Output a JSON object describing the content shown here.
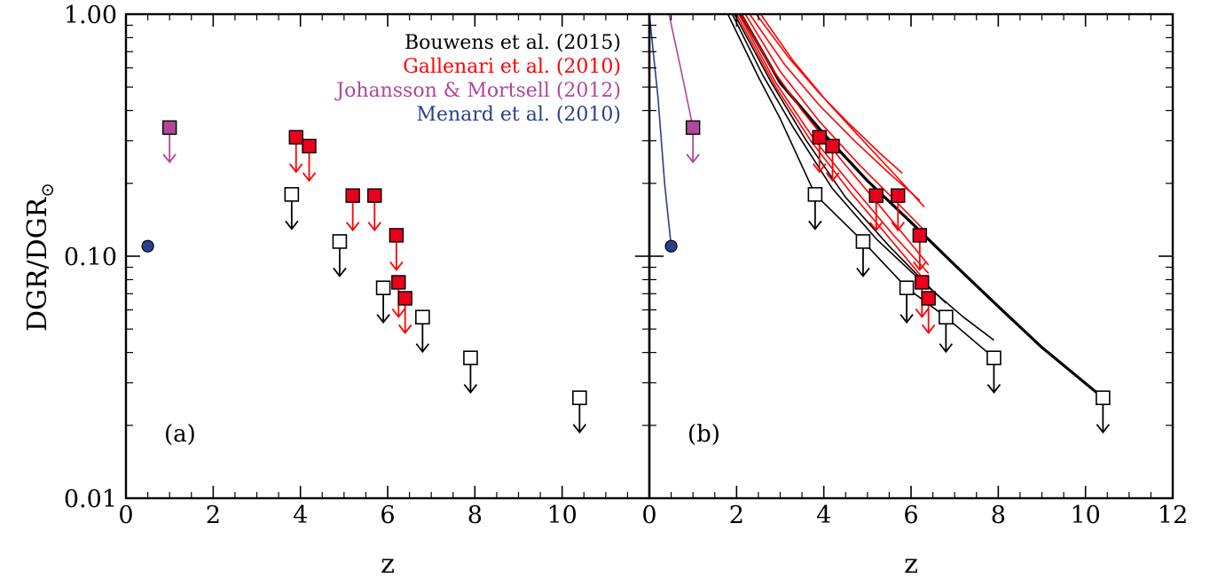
{
  "chart_data": {
    "type": "scatter",
    "ylabel_main": "DGR/DGR",
    "ylabel_sub": "⊙",
    "xlabel": "z",
    "yscale": "log",
    "ylim": [
      0.01,
      1.0
    ],
    "grid": false,
    "legend_placement": "top-right of panel (a)",
    "y_tick_labels": [
      "1.00",
      "0.10",
      "0.01"
    ],
    "y_tick_values": [
      1.0,
      0.1,
      0.01
    ],
    "colors": {
      "bouwens": "#000000",
      "gallenari": "#ff0000",
      "johansson": "#b0479a",
      "menard": "#2a3f8f",
      "gallenari_fill": "#e8001c"
    },
    "legend": [
      {
        "key": "bouwens",
        "label": "Bouwens et al. (2015)"
      },
      {
        "key": "gallenari",
        "label": "Gallenari et al. (2010)"
      },
      {
        "key": "johansson",
        "label": "Johansson & Mortsell (2012)"
      },
      {
        "key": "menard",
        "label": "Menard et al. (2010)"
      }
    ],
    "panels": [
      {
        "label": "(a)",
        "xlim": [
          0,
          12
        ],
        "x_tick_labels": [
          "0",
          "2",
          "4",
          "6",
          "8",
          "10"
        ],
        "x_tick_values": [
          0,
          2,
          4,
          6,
          8,
          10
        ],
        "show_curves": false
      },
      {
        "label": "(b)",
        "xlim": [
          0,
          12
        ],
        "x_tick_labels": [
          "0",
          "2",
          "4",
          "6",
          "8",
          "10",
          "12"
        ],
        "x_tick_values": [
          0,
          2,
          4,
          6,
          8,
          10,
          12
        ],
        "show_curves": true
      }
    ],
    "series": [
      {
        "name": "Bouwens et al. (2015)",
        "key": "bouwens",
        "marker": "open-square",
        "upper_limit": true,
        "points": [
          {
            "x": 3.8,
            "y": 0.18
          },
          {
            "x": 4.9,
            "y": 0.115
          },
          {
            "x": 5.9,
            "y": 0.074
          },
          {
            "x": 6.8,
            "y": 0.056
          },
          {
            "x": 7.9,
            "y": 0.038
          },
          {
            "x": 10.4,
            "y": 0.026
          }
        ]
      },
      {
        "name": "Gallenari et al. (2010)",
        "key": "gallenari",
        "marker": "filled-square",
        "upper_limit": true,
        "points": [
          {
            "x": 3.9,
            "y": 0.31
          },
          {
            "x": 4.2,
            "y": 0.285
          },
          {
            "x": 5.2,
            "y": 0.178
          },
          {
            "x": 5.7,
            "y": 0.178
          },
          {
            "x": 6.2,
            "y": 0.122
          },
          {
            "x": 6.25,
            "y": 0.078
          },
          {
            "x": 6.4,
            "y": 0.067
          }
        ]
      },
      {
        "name": "Johansson & Mortsell (2012)",
        "key": "johansson",
        "marker": "filled-square",
        "upper_limit": true,
        "points": [
          {
            "x": 1.0,
            "y": 0.34
          }
        ]
      },
      {
        "name": "Menard et al. (2010)",
        "key": "menard",
        "marker": "filled-circle",
        "upper_limit": false,
        "points": [
          {
            "x": 0.5,
            "y": 0.11
          }
        ]
      }
    ],
    "model_curves": [
      {
        "key": "bouwens",
        "width": 3.2,
        "points": [
          [
            2.1,
            1.0
          ],
          [
            3.0,
            0.52
          ],
          [
            4.0,
            0.32
          ],
          [
            5.0,
            0.205
          ],
          [
            6.0,
            0.138
          ],
          [
            7.0,
            0.092
          ],
          [
            8.0,
            0.062
          ],
          [
            9.0,
            0.042
          ],
          [
            10.4,
            0.026
          ]
        ]
      },
      {
        "key": "bouwens",
        "width": 1.6,
        "points": [
          [
            1.8,
            1.0
          ],
          [
            2.5,
            0.55
          ],
          [
            3.0,
            0.37
          ],
          [
            3.8,
            0.18
          ],
          [
            4.9,
            0.115
          ],
          [
            5.9,
            0.074
          ],
          [
            6.8,
            0.056
          ],
          [
            7.9,
            0.038
          ]
        ]
      },
      {
        "key": "bouwens",
        "width": 1.6,
        "points": [
          [
            1.9,
            1.0
          ],
          [
            2.6,
            0.56
          ],
          [
            3.3,
            0.34
          ],
          [
            4.2,
            0.19
          ],
          [
            5.2,
            0.118
          ],
          [
            6.2,
            0.08
          ],
          [
            7.2,
            0.056
          ],
          [
            7.9,
            0.045
          ]
        ]
      },
      {
        "key": "bouwens",
        "width": 1.6,
        "points": [
          [
            1.95,
            1.0
          ],
          [
            2.8,
            0.52
          ],
          [
            3.6,
            0.3
          ],
          [
            4.5,
            0.175
          ],
          [
            5.5,
            0.11
          ],
          [
            6.5,
            0.072
          ],
          [
            6.8,
            0.064
          ]
        ]
      },
      {
        "key": "gallenari",
        "width": 1.6,
        "points": [
          [
            2.1,
            1.0
          ],
          [
            2.8,
            0.6
          ],
          [
            3.5,
            0.4
          ],
          [
            4.4,
            0.25
          ],
          [
            5.3,
            0.16
          ],
          [
            6.4,
            0.092
          ]
        ]
      },
      {
        "key": "gallenari",
        "width": 1.6,
        "points": [
          [
            2.2,
            1.0
          ],
          [
            3.0,
            0.58
          ],
          [
            3.9,
            0.36
          ],
          [
            4.8,
            0.24
          ],
          [
            5.7,
            0.165
          ],
          [
            6.3,
            0.128
          ]
        ]
      },
      {
        "key": "gallenari",
        "width": 1.6,
        "points": [
          [
            2.3,
            1.0
          ],
          [
            3.1,
            0.62
          ],
          [
            3.9,
            0.42
          ],
          [
            4.7,
            0.3
          ],
          [
            5.5,
            0.22
          ],
          [
            6.2,
            0.17
          ]
        ]
      },
      {
        "key": "gallenari",
        "width": 1.6,
        "points": [
          [
            2.45,
            1.0
          ],
          [
            3.2,
            0.66
          ],
          [
            3.9,
            0.47
          ],
          [
            4.6,
            0.35
          ],
          [
            5.3,
            0.265
          ],
          [
            5.8,
            0.22
          ]
        ]
      },
      {
        "key": "gallenari",
        "width": 1.6,
        "points": [
          [
            2.55,
            1.0
          ],
          [
            3.3,
            0.64
          ],
          [
            4.1,
            0.43
          ],
          [
            4.9,
            0.3
          ],
          [
            5.6,
            0.22
          ],
          [
            6.3,
            0.16
          ]
        ]
      },
      {
        "key": "gallenari",
        "width": 1.6,
        "points": [
          [
            2.05,
            1.0
          ],
          [
            2.9,
            0.52
          ],
          [
            3.8,
            0.3
          ],
          [
            4.7,
            0.19
          ],
          [
            5.6,
            0.122
          ],
          [
            6.4,
            0.085
          ]
        ]
      },
      {
        "key": "gallenari",
        "width": 1.6,
        "points": [
          [
            2.0,
            1.0
          ],
          [
            2.9,
            0.5
          ],
          [
            3.7,
            0.3
          ],
          [
            4.6,
            0.185
          ],
          [
            5.4,
            0.125
          ],
          [
            6.25,
            0.082
          ]
        ]
      },
      {
        "key": "johansson",
        "width": 1.6,
        "points": [
          [
            0.45,
            1.0
          ],
          [
            0.7,
            0.62
          ],
          [
            1.0,
            0.34
          ]
        ]
      },
      {
        "key": "menard",
        "width": 1.6,
        "points": [
          [
            0.0,
            1.0
          ],
          [
            0.2,
            0.45
          ],
          [
            0.35,
            0.2
          ],
          [
            0.5,
            0.11
          ]
        ]
      }
    ]
  }
}
